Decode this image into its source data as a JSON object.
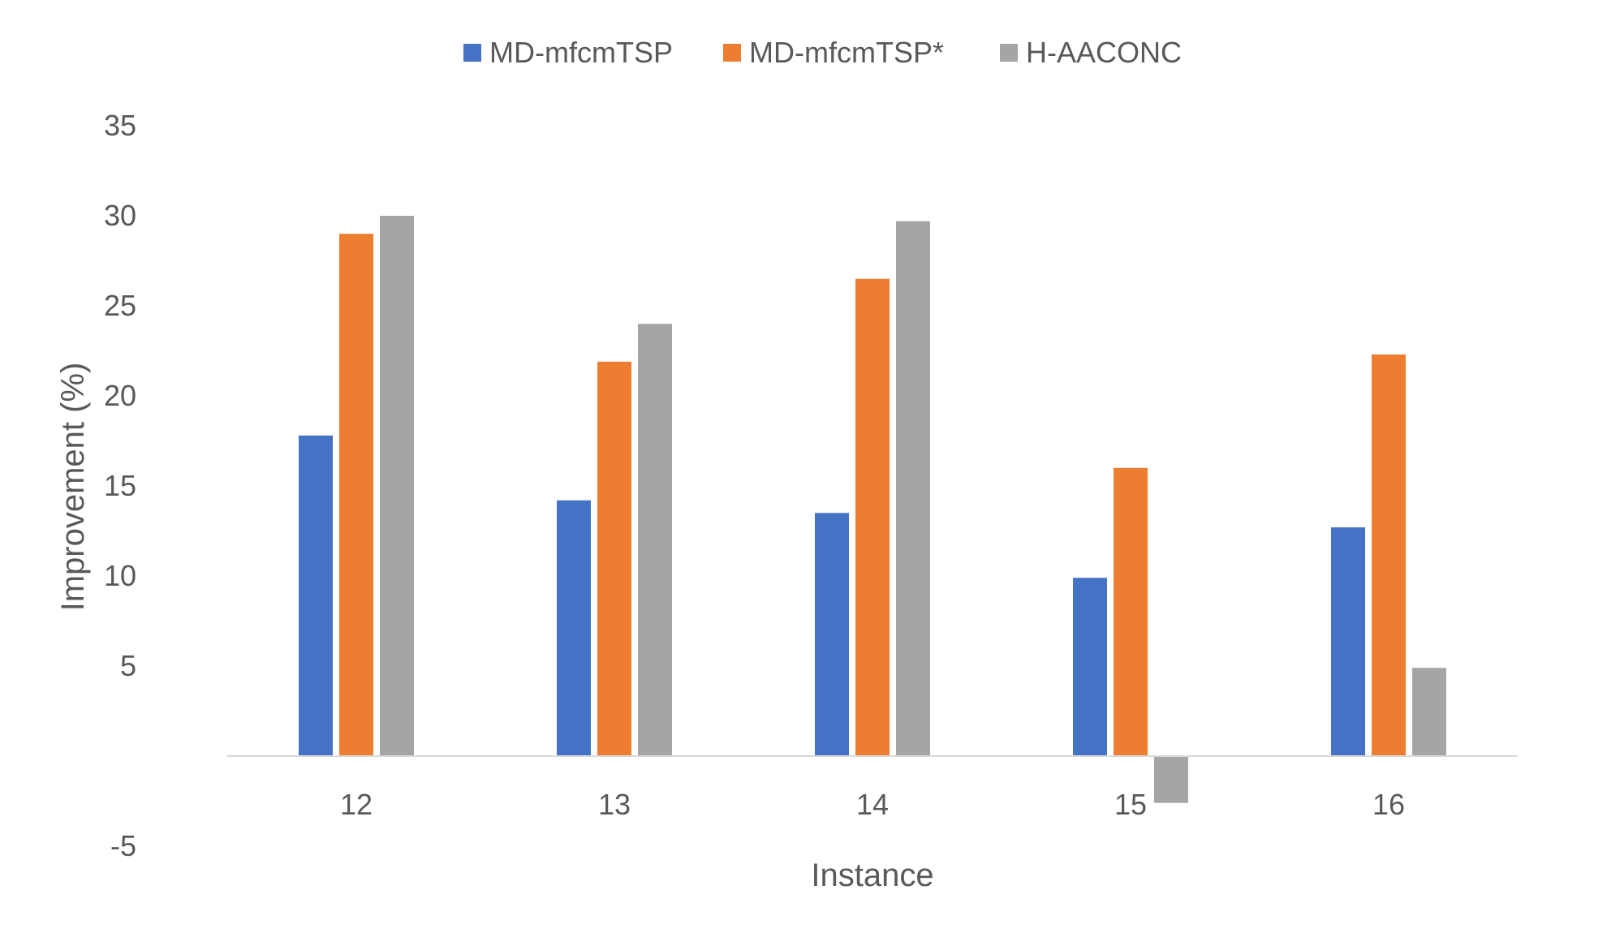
{
  "chart_data": {
    "type": "bar",
    "title": "",
    "xlabel": "Instance",
    "ylabel": "Improvement (%)",
    "categories": [
      "12",
      "13",
      "14",
      "15",
      "16"
    ],
    "series": [
      {
        "name": "MD-mfcmTSP",
        "color": "#4472C4",
        "values": [
          17.8,
          14.2,
          13.5,
          9.9,
          12.7
        ]
      },
      {
        "name": "MD-mfcmTSP*",
        "color": "#ED7D31",
        "values": [
          29.0,
          21.9,
          26.5,
          16.0,
          22.3
        ]
      },
      {
        "name": "H-AACONC",
        "color": "#A5A5A5",
        "values": [
          30.0,
          24.0,
          29.7,
          -2.6,
          4.9
        ]
      }
    ],
    "ylim": [
      -5,
      35
    ],
    "yticks": [
      "-5",
      "5",
      "10",
      "15",
      "20",
      "25",
      "30",
      "35"
    ],
    "grid": false,
    "legend_position": "top"
  }
}
